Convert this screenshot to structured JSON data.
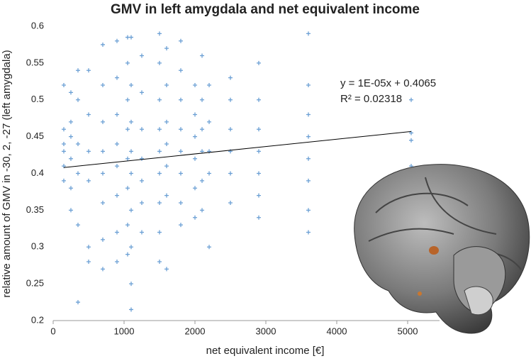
{
  "chart_data": {
    "type": "scatter",
    "title": "GMV in left amygdala and net equivalent income",
    "x_label": "net equivalent income [€]",
    "y_label": "relative amount of  GMV in -30, 2, -27 (left amygdala)",
    "annotations": [
      "y = 1E-05x + 0.4065",
      "R² = 0.02318"
    ],
    "color": "#6a9fd4",
    "trendline": {
      "x": [
        150,
        5050
      ],
      "y": [
        0.408,
        0.457
      ],
      "color": "#000000"
    },
    "xlim": [
      0,
      5450
    ],
    "ylim": [
      0.2,
      0.6
    ],
    "xticks": [
      0,
      1000,
      2000,
      3000,
      4000,
      5000
    ],
    "yticks": [
      0.2,
      0.25,
      0.3,
      0.35,
      0.4,
      0.45,
      0.5,
      0.55,
      0.6
    ],
    "grid": false,
    "x": [
      150,
      150,
      150,
      150,
      150,
      150,
      250,
      250,
      250,
      250,
      250,
      250,
      350,
      350,
      350,
      350,
      350,
      350,
      500,
      500,
      500,
      500,
      500,
      500,
      700,
      700,
      700,
      700,
      700,
      700,
      700,
      700,
      900,
      900,
      900,
      900,
      900,
      900,
      900,
      900,
      1050,
      1050,
      1050,
      1050,
      1050,
      1050,
      1050,
      1050,
      1100,
      1100,
      1100,
      1100,
      1100,
      1100,
      1100,
      1100,
      1100,
      1250,
      1250,
      1250,
      1250,
      1250,
      1250,
      1250,
      1500,
      1500,
      1500,
      1500,
      1500,
      1500,
      1500,
      1500,
      1500,
      1600,
      1600,
      1600,
      1600,
      1600,
      1600,
      1600,
      1800,
      1800,
      1800,
      1800,
      1800,
      1800,
      1800,
      1800,
      2000,
      2000,
      2000,
      2000,
      2000,
      2000,
      2100,
      2100,
      2100,
      2100,
      2100,
      2100,
      2200,
      2200,
      2200,
      2200,
      2200,
      2500,
      2500,
      2500,
      2500,
      2500,
      2500,
      2900,
      2900,
      2900,
      2900,
      2900,
      2900,
      2900,
      3600,
      3600,
      3600,
      3600,
      3600,
      3600,
      3600,
      3600,
      5050,
      5050,
      5050,
      5050,
      5050
    ],
    "y": [
      0.52,
      0.46,
      0.43,
      0.41,
      0.39,
      0.44,
      0.51,
      0.47,
      0.42,
      0.38,
      0.35,
      0.45,
      0.54,
      0.5,
      0.44,
      0.4,
      0.33,
      0.225,
      0.54,
      0.48,
      0.43,
      0.39,
      0.3,
      0.28,
      0.575,
      0.52,
      0.47,
      0.43,
      0.4,
      0.36,
      0.31,
      0.27,
      0.58,
      0.53,
      0.48,
      0.44,
      0.41,
      0.37,
      0.32,
      0.28,
      0.585,
      0.55,
      0.5,
      0.46,
      0.42,
      0.38,
      0.33,
      0.29,
      0.585,
      0.52,
      0.47,
      0.43,
      0.4,
      0.35,
      0.3,
      0.25,
      0.215,
      0.56,
      0.51,
      0.46,
      0.42,
      0.39,
      0.36,
      0.32,
      0.59,
      0.55,
      0.5,
      0.46,
      0.43,
      0.4,
      0.36,
      0.32,
      0.28,
      0.57,
      0.52,
      0.47,
      0.44,
      0.41,
      0.37,
      0.27,
      0.58,
      0.54,
      0.5,
      0.46,
      0.43,
      0.4,
      0.36,
      0.33,
      0.52,
      0.48,
      0.45,
      0.42,
      0.38,
      0.34,
      0.56,
      0.5,
      0.46,
      0.43,
      0.39,
      0.35,
      0.52,
      0.47,
      0.43,
      0.4,
      0.3,
      0.53,
      0.5,
      0.46,
      0.43,
      0.4,
      0.36,
      0.55,
      0.5,
      0.46,
      0.43,
      0.4,
      0.37,
      0.34,
      0.59,
      0.52,
      0.48,
      0.45,
      0.42,
      0.39,
      0.35,
      0.32,
      0.5,
      0.455,
      0.445,
      0.41,
      0.4
    ]
  }
}
